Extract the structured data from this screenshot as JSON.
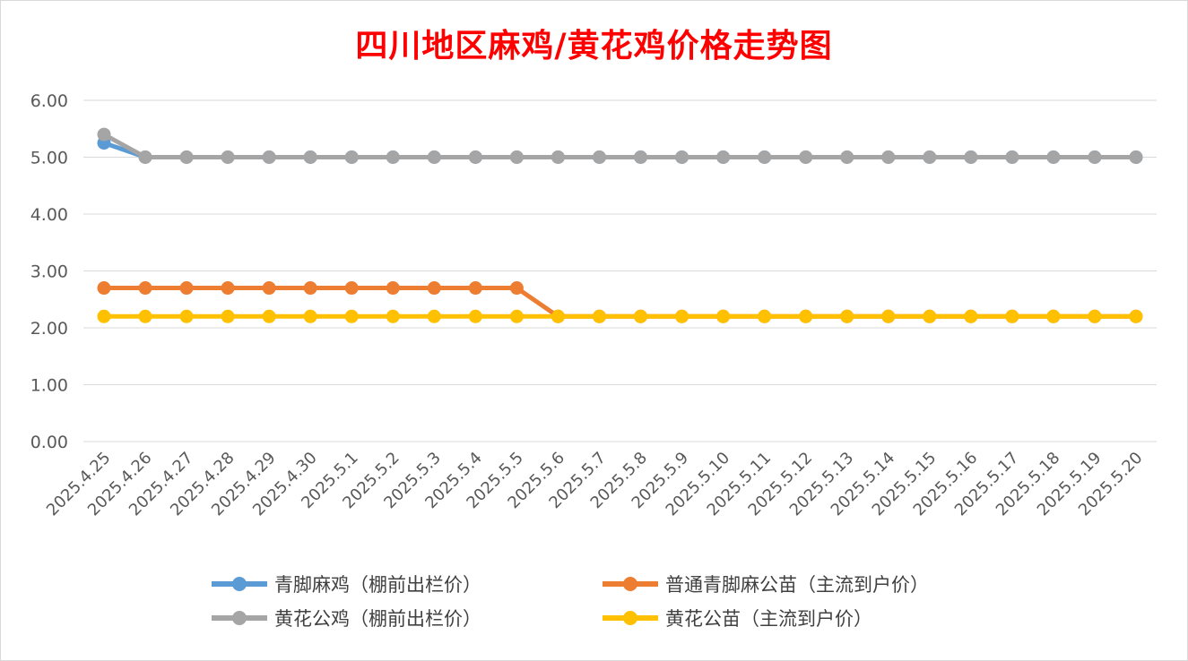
{
  "chart_data": {
    "type": "line",
    "title": "四川地区麻鸡/黄花鸡价格走势图",
    "categories": [
      "2025.4.25",
      "2025.4.26",
      "2025.4.27",
      "2025.4.28",
      "2025.4.29",
      "2025.4.30",
      "2025.5.1",
      "2025.5.2",
      "2025.5.3",
      "2025.5.4",
      "2025.5.5",
      "2025.5.6",
      "2025.5.7",
      "2025.5.8",
      "2025.5.9",
      "2025.5.10",
      "2025.5.11",
      "2025.5.12",
      "2025.5.13",
      "2025.5.14",
      "2025.5.15",
      "2025.5.16",
      "2025.5.17",
      "2025.5.18",
      "2025.5.19",
      "2025.5.20"
    ],
    "ylim": [
      0,
      6
    ],
    "yticks": [
      "0.00",
      "1.00",
      "2.00",
      "3.00",
      "4.00",
      "5.00",
      "6.00"
    ],
    "grid": true,
    "legend_position": "bottom",
    "series": [
      {
        "name": "青脚麻鸡（棚前出栏价）",
        "color": "#5b9bd5",
        "values": [
          5.25,
          5,
          5,
          5,
          5,
          5,
          5,
          5,
          5,
          5,
          5,
          5,
          5,
          5,
          5,
          5,
          5,
          5,
          5,
          5,
          5,
          5,
          5,
          5,
          5,
          5
        ]
      },
      {
        "name": "普通青脚麻公苗（主流到户价）",
        "color": "#ed7d31",
        "values": [
          2.7,
          2.7,
          2.7,
          2.7,
          2.7,
          2.7,
          2.7,
          2.7,
          2.7,
          2.7,
          2.7,
          2.2,
          2.2,
          2.2,
          2.2,
          2.2,
          2.2,
          2.2,
          2.2,
          2.2,
          2.2,
          2.2,
          2.2,
          2.2,
          2.2,
          2.2
        ]
      },
      {
        "name": "黄花公鸡（棚前出栏价）",
        "color": "#a5a5a5",
        "values": [
          5.4,
          5,
          5,
          5,
          5,
          5,
          5,
          5,
          5,
          5,
          5,
          5,
          5,
          5,
          5,
          5,
          5,
          5,
          5,
          5,
          5,
          5,
          5,
          5,
          5,
          5
        ]
      },
      {
        "name": "黄花公苗（主流到户价）",
        "color": "#ffc000",
        "values": [
          2.2,
          2.2,
          2.2,
          2.2,
          2.2,
          2.2,
          2.2,
          2.2,
          2.2,
          2.2,
          2.2,
          2.2,
          2.2,
          2.2,
          2.2,
          2.2,
          2.2,
          2.2,
          2.2,
          2.2,
          2.2,
          2.2,
          2.2,
          2.2,
          2.2,
          2.2
        ]
      }
    ]
  }
}
